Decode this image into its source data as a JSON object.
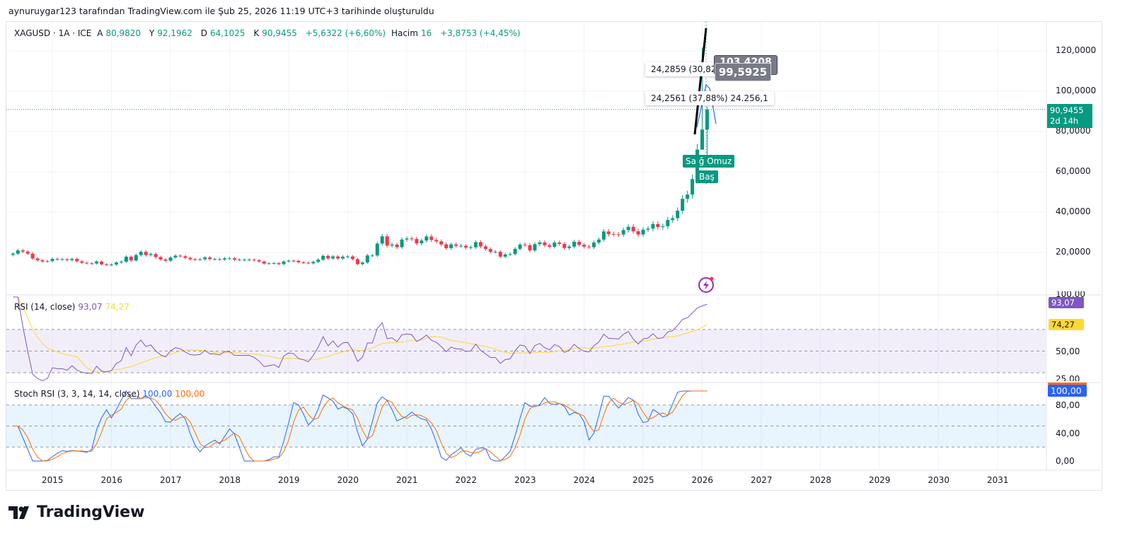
{
  "caption": "aynuruygar123 tarafından TradingView.com ile Şub 25, 2026 11:19 UTC+3 tarihinde oluşturuldu",
  "legend": {
    "symbol": "XAGUSD · 1A · ICE",
    "o_label": "A",
    "o": "80,9820",
    "h_label": "Y",
    "h": "92,1962",
    "l_label": "D",
    "l": "64,1025",
    "c_label": "K",
    "c": "90,9455",
    "change": "+5,6322 (+6,60%)",
    "vol_label": "Hacim",
    "vol": "16",
    "vol_change": "+3,8753 (+4,45%)"
  },
  "price_axis": {
    "ticks": [
      "120,0000",
      "100,0000",
      "80,0000",
      "60,0000",
      "40,0000",
      "20,0000"
    ],
    "last_price": "90,9455",
    "countdown": "2d 14h"
  },
  "annotations": {
    "fib1": "24,2859 (30,82",
    "fib2": "24,2561 (37,88%) 24.256,1",
    "callout_hidden": "103,4208",
    "callout": "99,5925",
    "left_shoulder": "Sa ğ Omuz",
    "head": "Baş"
  },
  "rsi": {
    "title": "RSI (14, close)",
    "value": "93,07",
    "ma": "74,27",
    "ticks": [
      "100,00",
      "50,00",
      "25,00"
    ]
  },
  "stoch": {
    "title": "Stoch RSI (3, 3, 14, 14, close)",
    "k": "100,00",
    "d": "100,00",
    "ticks": [
      "80,00",
      "40,00",
      "0,00"
    ]
  },
  "time_axis": [
    "2015",
    "2016",
    "2017",
    "2018",
    "2019",
    "2020",
    "2021",
    "2022",
    "2023",
    "2024",
    "2025",
    "2026",
    "2027",
    "2028",
    "2029",
    "2030",
    "2031"
  ],
  "brand": "TradingView",
  "colors": {
    "up": "#089981",
    "down": "#f23645",
    "rsi": "#7e57c2",
    "rsi_ma": "#fdd835",
    "stoch_k": "#2962ff",
    "stoch_d": "#ff6d00"
  },
  "chart_data": {
    "type": "candlestick",
    "interval": "1 month",
    "start": "2014-05",
    "closes": [
      19.4,
      21,
      20.4,
      19.4,
      17,
      16.1,
      15.5,
      15.7,
      16.8,
      16.6,
      16.6,
      16.2,
      16.8,
      15.6,
      14.9,
      14.6,
      14.5,
      15.5,
      14.1,
      13.8,
      14.0,
      15.0,
      15.4,
      17.9,
      16.0,
      18.7,
      20.3,
      18.7,
      19.2,
      17.7,
      16.5,
      15.9,
      17.5,
      18.4,
      18.1,
      17.3,
      16.6,
      16.5,
      16.6,
      17.5,
      16.7,
      16.7,
      16.5,
      17.1,
      17.1,
      16.4,
      16.4,
      16.4,
      16.4,
      16.1,
      15.5,
      14.5,
      14.6,
      14.7,
      14.2,
      15.5,
      15.9,
      15.8,
      15.1,
      14.9,
      14.6,
      15.3,
      16.4,
      18.3,
      17.0,
      18.0,
      17.0,
      17.9,
      18.0,
      16.7,
      14.2,
      15.0,
      18.5,
      18.5,
      24.4,
      28.0,
      23.4,
      23.9,
      22.6,
      26.4,
      26.9,
      26.7,
      24.5,
      25.9,
      27.9,
      26.2,
      25.5,
      24.0,
      22.1,
      24.0,
      23.3,
      23.3,
      22.4,
      22.6,
      25.1,
      23.0,
      21.7,
      20.3,
      20.3,
      17.9,
      19.0,
      19.2,
      21.8,
      23.9,
      23.6,
      21.0,
      24.1,
      25.0,
      23.6,
      22.8,
      24.9,
      24.2,
      22.2,
      22.9,
      25.3,
      23.8,
      22.9,
      22.6,
      24.9,
      26.4,
      30.4,
      29.1,
      29.0,
      28.9,
      31.1,
      32.7,
      30.5,
      28.9,
      31.3,
      31.8,
      34.1,
      32.6,
      33.0,
      36.1,
      37.0,
      40.7,
      46.6,
      48.7,
      56.4,
      71.0,
      80.98,
      90.9455
    ],
    "last_two_highs": [
      121.6,
      92.1962
    ],
    "last_two_lows": [
      74.0,
      64.1025
    ]
  }
}
